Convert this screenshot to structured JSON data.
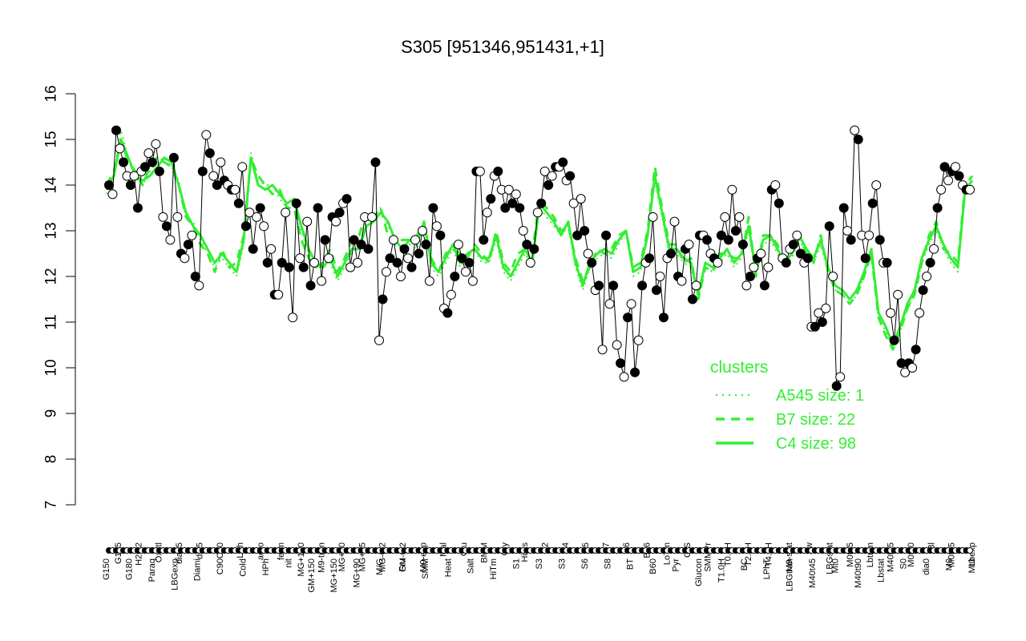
{
  "chart_data": {
    "type": "line",
    "title": "S305 [951346,951431,+1]",
    "xlabel": "",
    "ylabel": "",
    "ylim": [
      7,
      16
    ],
    "yticks": [
      7,
      8,
      9,
      10,
      11,
      12,
      13,
      14,
      15,
      16
    ],
    "grid": false,
    "legend": {
      "title": "clusters",
      "position": "bottom-right",
      "entries": [
        {
          "label": "A545 size: 1",
          "style": "dotted"
        },
        {
          "label": "B7 size: 22",
          "style": "dashed"
        },
        {
          "label": "C4 size: 98",
          "style": "solid"
        }
      ]
    },
    "category_labels_row1": [
      "G135",
      "H2O2",
      "Oxctl",
      "dia15",
      "dia5",
      "C30",
      "LPh",
      "aero",
      "ferm",
      "MG+120",
      "M9-tran",
      "MG+60",
      "MG+45",
      "MG-0.2",
      "GM-0.2",
      "M9-exp",
      "Mal",
      "Glu",
      "BMM",
      "Gly",
      "HiOs",
      "S2",
      "S4",
      "S5",
      "S7",
      "S6",
      "B36",
      "LoTm",
      "G/S",
      "SMMPr",
      "T0.0H",
      "T2.0H",
      "T4.0H",
      "M9-stat",
      "Sw",
      "LBGstat",
      "M0t45",
      "Lbtran",
      "M40t45",
      "M0t90",
      "Bl",
      "M0t45",
      "Lbexp"
    ],
    "category_labels_row2": [
      "G150",
      "G180",
      "Paraq",
      "LBGexp",
      "Diami",
      "C90",
      "Cold",
      "HPh",
      "nit",
      "GM+150",
      "MG+150",
      "MG+90",
      "M/G",
      "Fru",
      "SMM",
      "Heat",
      "Salt",
      "HiTm",
      "S1",
      "S3",
      "S3",
      "S6",
      "S8",
      "BT",
      "B60",
      "Pyr",
      "Glucon",
      "T1.0H",
      "BC",
      "LPhT",
      "LBGtran",
      "M40t45",
      "Mt0",
      "M40t90",
      "Lbstat",
      "S0",
      "dia0",
      "M0",
      "Mt0"
    ],
    "series": [
      {
        "name": "C4",
        "style": "solid",
        "values": [
          13.9,
          14.2,
          15.0,
          14.6,
          14.2,
          14.1,
          14.2,
          14.4,
          14.6,
          14.5,
          14.0,
          13.4,
          13.1,
          12.9,
          12.6,
          12.3,
          12.5,
          12.3,
          12.1,
          12.8,
          14.6,
          14.0,
          13.9,
          14.0,
          13.8,
          13.6,
          13.7,
          13.1,
          12.6,
          12.3,
          12.2,
          12.4,
          12.0,
          12.3,
          12.6,
          12.6,
          13.1,
          13.2,
          13.4,
          13.2,
          12.8,
          12.6,
          12.8,
          12.7,
          13.2,
          12.3,
          12.1,
          12.4,
          12.7,
          12.3,
          12.5,
          12.6,
          12.4,
          12.4,
          12.9,
          12.2,
          12.0,
          12.3,
          12.6,
          12.3,
          13.6,
          13.4,
          13.2,
          12.9,
          13.2,
          12.3,
          11.8,
          12.3,
          12.5,
          12.6,
          12.5,
          12.8,
          13.0,
          12.1,
          12.2,
          12.9,
          14.2,
          13.4,
          12.6,
          12.6,
          12.4,
          12.3,
          11.6,
          12.3,
          12.2,
          12.4,
          12.6,
          12.3,
          12.5,
          13.1,
          12.1,
          12.8,
          12.9,
          12.6,
          12.3,
          12.5,
          12.9,
          12.6,
          12.4,
          12.8,
          12.2,
          11.8,
          11.7,
          11.5,
          11.7,
          12.1,
          12.6,
          11.2,
          10.9,
          10.5,
          10.9,
          11.4,
          11.7,
          12.4,
          12.8,
          13.1,
          12.7,
          12.4,
          12.2,
          13.9,
          14.1
        ]
      },
      {
        "name": "B7",
        "style": "dashed",
        "values": [
          14.0,
          14.3,
          15.0,
          14.5,
          14.3,
          14.0,
          14.4,
          14.6,
          14.5,
          14.4,
          14.0,
          13.3,
          13.1,
          12.7,
          12.5,
          12.1,
          12.6,
          12.2,
          12.3,
          12.9,
          14.6,
          14.2,
          14.0,
          13.8,
          13.9,
          13.5,
          13.5,
          12.8,
          12.4,
          12.2,
          12.3,
          12.6,
          12.1,
          12.4,
          12.8,
          12.9,
          13.4,
          13.3,
          13.5,
          12.9,
          12.7,
          12.8,
          12.8,
          12.9,
          13.1,
          12.4,
          12.1,
          12.5,
          12.6,
          12.5,
          12.4,
          12.7,
          12.5,
          12.3,
          13.0,
          12.3,
          12.1,
          12.5,
          12.6,
          12.5,
          13.7,
          13.5,
          13.3,
          13.0,
          13.1,
          12.4,
          11.9,
          12.2,
          12.6,
          12.5,
          12.6,
          12.9,
          13.0,
          12.2,
          12.3,
          13.0,
          14.4,
          13.5,
          12.7,
          12.7,
          12.3,
          12.4,
          11.5,
          12.2,
          12.1,
          12.5,
          12.5,
          12.4,
          12.4,
          13.3,
          12.0,
          12.9,
          12.9,
          12.7,
          12.2,
          12.6,
          12.9,
          12.5,
          12.3,
          12.9,
          12.1,
          11.7,
          11.6,
          11.4,
          11.6,
          12.0,
          12.5,
          11.1,
          10.7,
          10.4,
          10.8,
          11.3,
          11.6,
          12.3,
          12.9,
          13.2,
          12.6,
          12.5,
          12.3,
          14.0,
          14.2
        ]
      },
      {
        "name": "A545",
        "style": "dotted",
        "values": [
          13.8,
          14.2,
          15.2,
          14.6,
          14.2,
          14.0,
          14.3,
          14.5,
          14.6,
          14.4,
          14.1,
          13.3,
          13.2,
          12.8,
          12.5,
          12.2,
          12.4,
          12.2,
          12.0,
          12.7,
          14.7,
          14.1,
          14.0,
          14.0,
          13.7,
          13.5,
          13.6,
          13.0,
          12.5,
          12.2,
          12.2,
          12.3,
          11.9,
          12.2,
          12.5,
          12.7,
          13.2,
          13.3,
          13.5,
          13.1,
          12.8,
          12.6,
          12.7,
          12.6,
          13.1,
          12.2,
          12.0,
          12.3,
          12.6,
          12.2,
          12.5,
          12.6,
          12.3,
          12.3,
          12.8,
          12.1,
          11.9,
          12.2,
          12.5,
          12.2,
          13.5,
          13.3,
          13.1,
          12.9,
          13.1,
          12.2,
          11.7,
          12.2,
          12.4,
          12.5,
          12.4,
          12.7,
          13.0,
          12.0,
          12.1,
          12.9,
          14.1,
          13.3,
          12.5,
          12.5,
          12.3,
          12.2,
          11.5,
          12.2,
          12.1,
          12.3,
          12.5,
          12.2,
          12.4,
          13.0,
          12.0,
          12.7,
          12.8,
          12.5,
          12.2,
          12.4,
          12.8,
          12.5,
          12.3,
          12.7,
          12.1,
          11.7,
          11.6,
          11.4,
          11.6,
          12.0,
          12.5,
          11.1,
          10.8,
          10.4,
          10.8,
          11.3,
          11.6,
          12.3,
          12.7,
          13.0,
          12.6,
          12.3,
          12.1,
          13.8,
          14.0
        ]
      },
      {
        "name": "",
        "style": "points",
        "values": [
          14.0,
          13.8,
          15.2,
          14.8,
          14.5,
          14.2,
          14.0,
          14.2,
          13.5,
          14.3,
          14.4,
          14.7,
          14.5,
          14.9,
          14.3,
          13.3,
          13.1,
          12.8,
          14.6,
          13.3,
          12.5,
          12.4,
          12.7,
          12.9,
          12.0,
          11.8,
          14.3,
          15.1,
          14.7,
          14.2,
          14.0,
          14.5,
          14.1,
          14.0,
          13.9,
          13.9,
          13.6,
          14.4,
          13.1,
          13.4,
          12.6,
          13.3,
          13.5,
          13.1,
          12.3,
          12.6,
          11.6,
          11.6,
          12.3,
          13.4,
          12.2,
          11.1,
          13.6,
          12.4,
          12.2,
          13.2,
          11.8,
          12.3,
          13.5,
          11.9,
          12.8,
          12.4,
          13.3,
          13.2,
          13.4,
          13.6,
          13.7,
          12.2,
          12.8,
          12.3,
          12.7,
          13.3,
          12.6,
          13.3,
          14.5,
          10.6,
          11.5,
          12.1,
          12.4,
          12.8,
          12.3,
          12.0,
          12.6,
          12.4,
          12.2,
          12.8,
          12.5,
          13.0,
          12.7,
          11.9,
          13.5,
          13.1,
          12.9,
          11.3,
          11.2,
          11.6,
          12.0,
          12.7,
          12.4,
          12.1,
          12.3,
          11.9,
          14.3,
          14.3,
          12.8,
          13.4,
          13.7,
          14.2,
          14.3,
          13.9,
          13.5,
          13.9,
          13.6,
          13.8,
          13.5,
          13.0,
          12.7,
          12.3,
          12.6,
          13.4,
          13.6,
          14.3,
          14.0,
          14.2,
          14.4,
          14.4,
          14.5,
          14.1,
          14.2,
          13.6,
          12.9,
          13.7,
          13.0,
          12.5,
          12.3,
          11.7,
          11.8,
          10.4,
          12.9,
          11.4,
          11.8,
          10.5,
          10.1,
          9.8,
          11.1,
          11.4,
          9.9,
          10.6,
          11.8,
          12.3,
          12.4,
          13.3,
          11.7,
          12.0,
          11.1,
          12.4,
          12.5,
          13.2,
          12.0,
          11.9,
          12.6,
          12.7,
          11.5,
          11.8,
          12.9,
          12.9,
          12.8,
          12.5,
          12.4,
          12.3,
          12.9,
          13.3,
          12.8,
          13.9,
          13.0,
          13.3,
          12.7,
          11.8,
          12.0,
          12.2,
          12.4,
          12.5,
          11.8,
          12.2,
          13.9,
          14.0,
          13.6,
          12.4,
          12.3,
          12.6,
          12.7,
          12.9,
          12.5,
          12.3,
          12.4,
          10.9,
          10.9,
          11.2,
          11.0,
          11.3,
          13.1,
          12.0,
          9.6,
          9.8,
          13.5,
          13.0,
          12.8,
          15.2,
          15.0,
          12.9,
          12.4,
          12.9,
          13.6,
          14.0,
          12.8,
          12.3,
          12.3,
          11.2,
          10.6,
          11.6,
          10.1,
          9.9,
          10.1,
          10.0,
          10.4,
          11.2,
          11.7,
          12.0,
          12.3,
          12.6,
          13.5,
          13.9,
          14.4,
          14.1,
          14.3,
          14.4,
          14.2,
          14.0,
          13.9,
          13.9
        ]
      }
    ]
  }
}
